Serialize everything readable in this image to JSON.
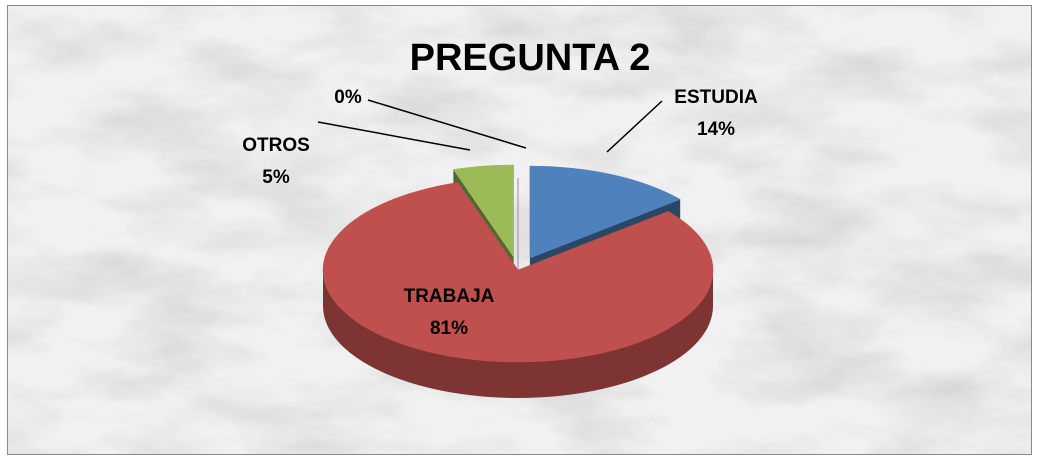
{
  "chart_data": {
    "type": "pie3d",
    "title": "PREGUNTA 2",
    "categories": [
      "ESTUDIA",
      "TRABAJA",
      "OTROS",
      null
    ],
    "values": [
      14,
      81,
      5,
      0
    ],
    "value_labels": [
      "14%",
      "81%",
      "5%",
      "0%"
    ],
    "colors": [
      "#4f81bd",
      "#c0504d",
      "#9bbb59",
      "#8064a2"
    ]
  }
}
